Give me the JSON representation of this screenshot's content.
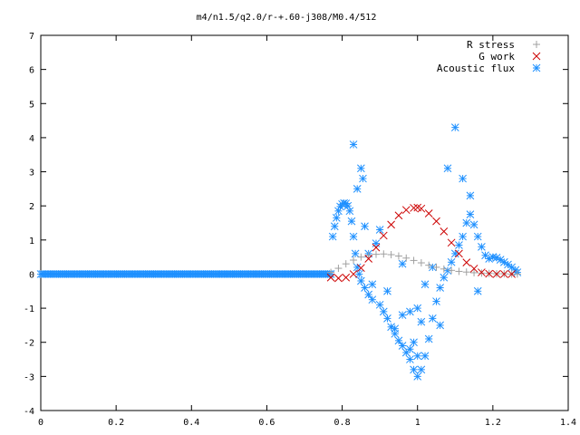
{
  "chart_data": {
    "type": "scatter",
    "title": "m4/n1.5/q2.0/r-+.60-j308/M0.4/512",
    "xlabel": "",
    "ylabel": "",
    "xlim": [
      0,
      1.4
    ],
    "ylim": [
      -4,
      7
    ],
    "x_ticks": [
      "0",
      "0.2",
      "0.4",
      "0.6",
      "0.8",
      "1",
      "1.2",
      "1.4"
    ],
    "y_ticks": [
      "-4",
      "-3",
      "-2",
      "-1",
      "0",
      "1",
      "2",
      "3",
      "4",
      "5",
      "6",
      "7"
    ],
    "grid": false,
    "legend_position": "top-right",
    "series": [
      {
        "name": "R stress",
        "marker": "+",
        "color": "#a0a0a0",
        "x": [
          0.77,
          0.79,
          0.81,
          0.83,
          0.85,
          0.87,
          0.89,
          0.91,
          0.93,
          0.95,
          0.97,
          0.99,
          1.01,
          1.03,
          1.05,
          1.07,
          1.09,
          1.11,
          1.13,
          1.15,
          1.17,
          1.19,
          1.21,
          1.23,
          1.25,
          1.265
        ],
        "y": [
          0.05,
          0.17,
          0.3,
          0.41,
          0.5,
          0.55,
          0.58,
          0.59,
          0.57,
          0.53,
          0.47,
          0.4,
          0.33,
          0.26,
          0.2,
          0.15,
          0.11,
          0.08,
          0.06,
          0.04,
          0.03,
          0.02,
          0.01,
          0.01,
          0.0,
          0.0
        ]
      },
      {
        "name": "G work",
        "marker": "x",
        "color": "#cc0000",
        "x": [
          0.77,
          0.79,
          0.81,
          0.83,
          0.85,
          0.87,
          0.89,
          0.91,
          0.93,
          0.95,
          0.97,
          0.99,
          1.0,
          1.01,
          1.03,
          1.05,
          1.07,
          1.09,
          1.11,
          1.13,
          1.15,
          1.17,
          1.19,
          1.21,
          1.23,
          1.25
        ],
        "y": [
          -0.1,
          -0.12,
          -0.1,
          0.0,
          0.18,
          0.45,
          0.78,
          1.13,
          1.45,
          1.72,
          1.88,
          1.94,
          1.95,
          1.92,
          1.78,
          1.55,
          1.25,
          0.92,
          0.6,
          0.34,
          0.16,
          0.05,
          0.01,
          0.0,
          0.0,
          0.0
        ]
      },
      {
        "name": "Acoustic flux",
        "marker": "*",
        "color": "#1e90ff",
        "x": [
          0.775,
          0.78,
          0.785,
          0.79,
          0.795,
          0.8,
          0.805,
          0.81,
          0.815,
          0.82,
          0.825,
          0.83,
          0.835,
          0.84,
          0.845,
          0.85,
          0.86,
          0.87,
          0.88,
          0.9,
          0.91,
          0.92,
          0.93,
          0.94,
          0.95,
          0.96,
          0.97,
          0.98,
          0.99,
          1.0,
          1.01,
          1.02,
          1.03,
          1.04,
          1.05,
          1.06,
          1.07,
          1.08,
          1.09,
          1.1,
          1.11,
          1.12,
          1.13,
          1.14,
          1.15,
          1.16,
          1.17,
          1.18,
          1.19,
          1.2,
          1.21,
          1.22,
          1.23,
          1.24,
          1.25,
          1.26,
          1.265,
          0.83,
          0.84,
          0.85,
          0.855,
          0.86,
          0.87,
          0.88,
          0.89,
          0.9,
          0.92,
          0.94,
          0.96,
          0.98,
          1.0,
          1.02,
          1.04,
          1.06,
          1.08,
          1.1,
          1.12,
          1.14,
          1.16,
          0.96,
          0.98,
          0.99,
          1.0,
          1.01
        ],
        "y": [
          1.1,
          1.4,
          1.65,
          1.85,
          1.98,
          2.05,
          2.08,
          2.07,
          2.0,
          1.85,
          1.55,
          1.1,
          0.6,
          0.2,
          0.0,
          -0.2,
          -0.4,
          -0.6,
          -0.75,
          -0.9,
          -1.1,
          -1.3,
          -1.55,
          -1.75,
          -1.95,
          -2.1,
          -2.3,
          -2.5,
          -2.8,
          -3.0,
          -2.8,
          -2.4,
          -1.9,
          -1.3,
          -0.8,
          -0.4,
          -0.1,
          0.1,
          0.35,
          0.6,
          0.85,
          1.1,
          1.5,
          1.75,
          1.45,
          1.1,
          0.8,
          0.55,
          0.45,
          0.5,
          0.48,
          0.42,
          0.35,
          0.28,
          0.2,
          0.12,
          0.05,
          3.8,
          2.5,
          3.1,
          2.8,
          1.4,
          0.6,
          -0.3,
          0.9,
          1.3,
          -0.5,
          -1.6,
          -1.2,
          -2.2,
          -1.0,
          -0.3,
          0.2,
          -1.5,
          3.1,
          4.3,
          2.8,
          2.3,
          -0.5,
          0.3,
          -1.1,
          -2.0,
          -2.4,
          -1.4
        ],
        "zero_x_start": 0.0,
        "zero_x_end": 0.77,
        "zero_y": 0.0
      }
    ]
  }
}
